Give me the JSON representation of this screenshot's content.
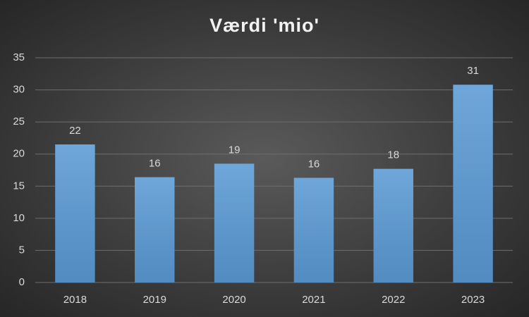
{
  "chart_data": {
    "type": "bar",
    "title": "Værdi 'mio'",
    "categories": [
      "2018",
      "2019",
      "2020",
      "2021",
      "2022",
      "2023"
    ],
    "values": [
      21.5,
      16.4,
      18.5,
      16.3,
      17.7,
      30.8
    ],
    "value_labels": [
      "22",
      "16",
      "19",
      "16",
      "18",
      "31"
    ],
    "color": "#5b9bd5",
    "ylim": [
      0,
      35
    ],
    "yticks": [
      0,
      5,
      10,
      15,
      20,
      25,
      30,
      35
    ],
    "grid": true
  }
}
